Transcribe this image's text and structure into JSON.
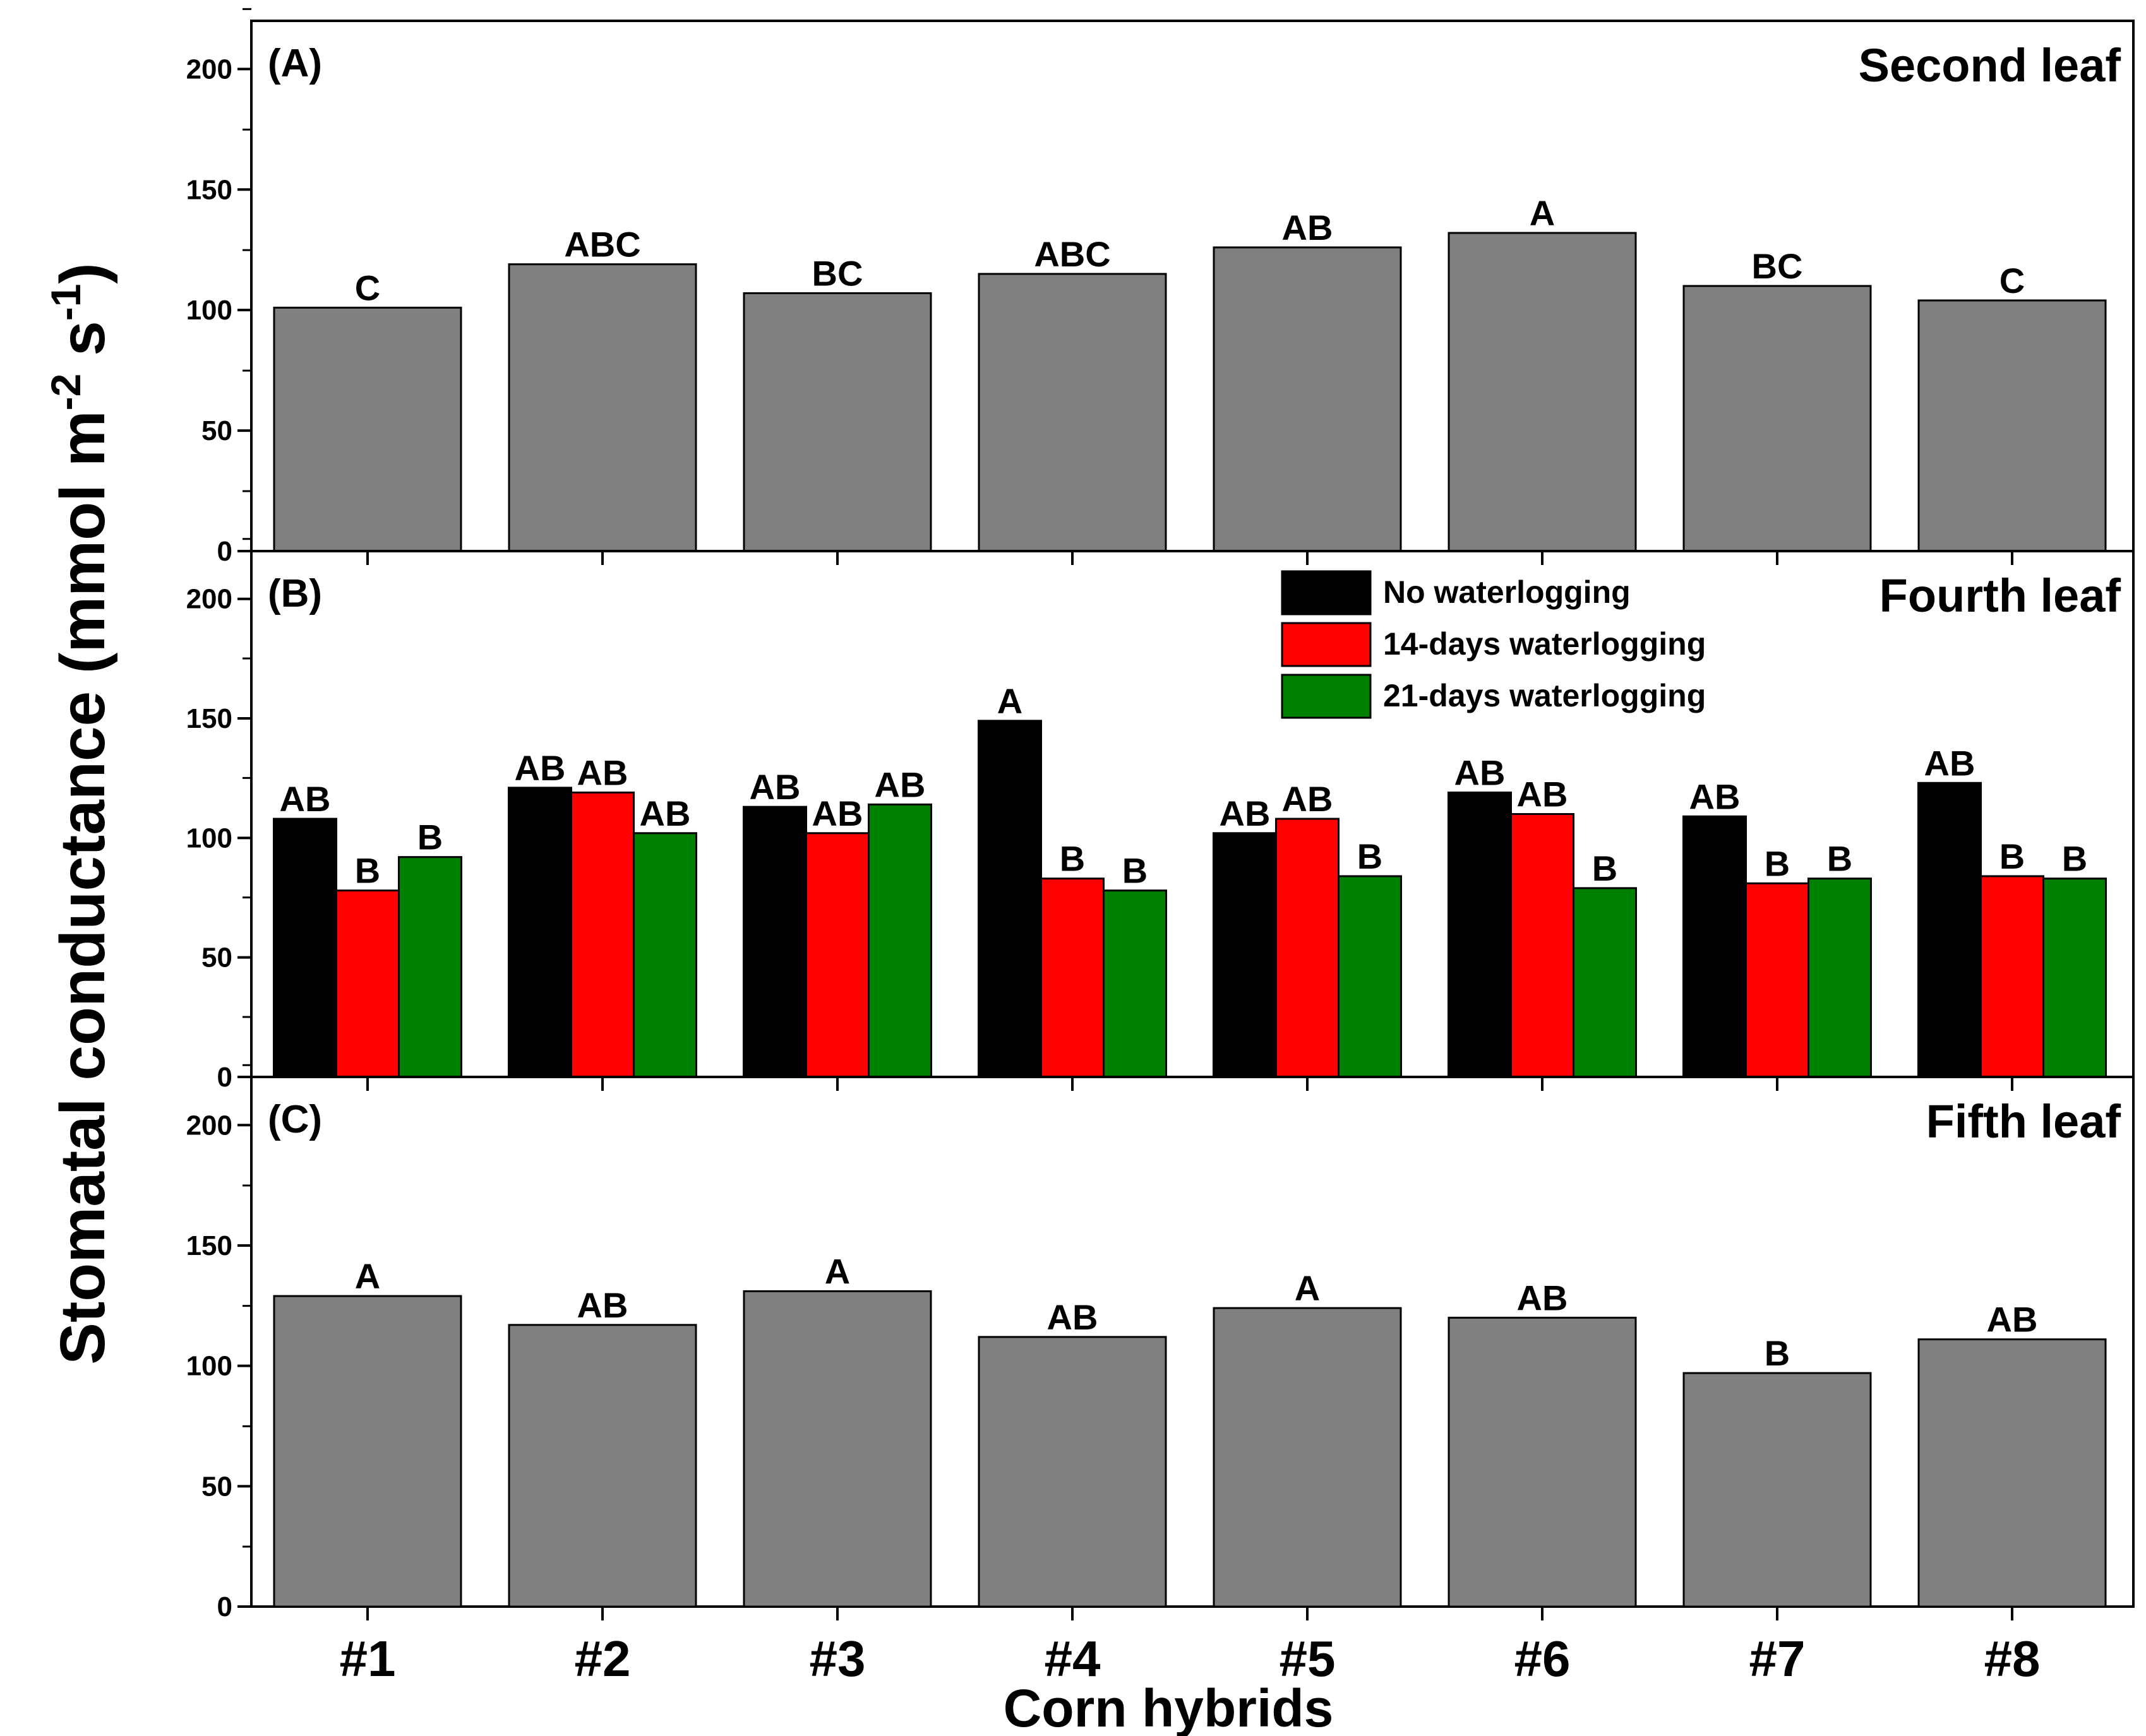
{
  "chart_data": {
    "type": "bar",
    "xlabel": "Corn hybrids",
    "ylabel": {
      "main": "Stomatal conductance (mmol m",
      "exp1": "-2",
      "mid": " s",
      "exp2": "-1",
      "end": ")"
    },
    "categories": [
      "#1",
      "#2",
      "#3",
      "#4",
      "#5",
      "#6",
      "#7",
      "#8"
    ],
    "ylim": [
      0,
      220
    ],
    "yticks": [
      0,
      50,
      100,
      150,
      200
    ],
    "legend": {
      "position": "top-right of panel B",
      "entries": [
        {
          "name": "No waterlogging",
          "color": "#000000"
        },
        {
          "name": "14-days waterlogging",
          "color": "#ff0000"
        },
        {
          "name": "21-days waterlogging",
          "color": "#008000"
        }
      ]
    },
    "panels": [
      {
        "label": "(A)",
        "title": "Second leaf",
        "series": [
          {
            "name": "",
            "color": "#808080",
            "values": [
              101,
              119,
              107,
              115,
              126,
              132,
              110,
              104
            ],
            "letters": [
              "C",
              "ABC",
              "BC",
              "ABC",
              "AB",
              "A",
              "BC",
              "C"
            ]
          }
        ]
      },
      {
        "label": "(B)",
        "title": "Fourth leaf",
        "series": [
          {
            "name": "No waterlogging",
            "color": "#000000",
            "values": [
              108,
              121,
              113,
              149,
              102,
              119,
              109,
              123
            ],
            "letters": [
              "AB",
              "AB",
              "AB",
              "A",
              "AB",
              "AB",
              "AB",
              "AB"
            ]
          },
          {
            "name": "14-days waterlogging",
            "color": "#ff0000",
            "values": [
              78,
              119,
              102,
              83,
              108,
              110,
              81,
              84
            ],
            "letters": [
              "B",
              "AB",
              "AB",
              "B",
              "AB",
              "AB",
              "B",
              "B"
            ]
          },
          {
            "name": "21-days waterlogging",
            "color": "#008000",
            "values": [
              92,
              102,
              114,
              78,
              84,
              79,
              83,
              83
            ],
            "letters": [
              "B",
              "AB",
              "AB",
              "B",
              "B",
              "B",
              "B",
              "B"
            ]
          }
        ]
      },
      {
        "label": "(C)",
        "title": "Fifth leaf",
        "series": [
          {
            "name": "",
            "color": "#808080",
            "values": [
              129,
              117,
              131,
              112,
              124,
              120,
              97,
              111
            ],
            "letters": [
              "A",
              "AB",
              "A",
              "AB",
              "A",
              "AB",
              "B",
              "AB"
            ]
          }
        ]
      }
    ]
  }
}
